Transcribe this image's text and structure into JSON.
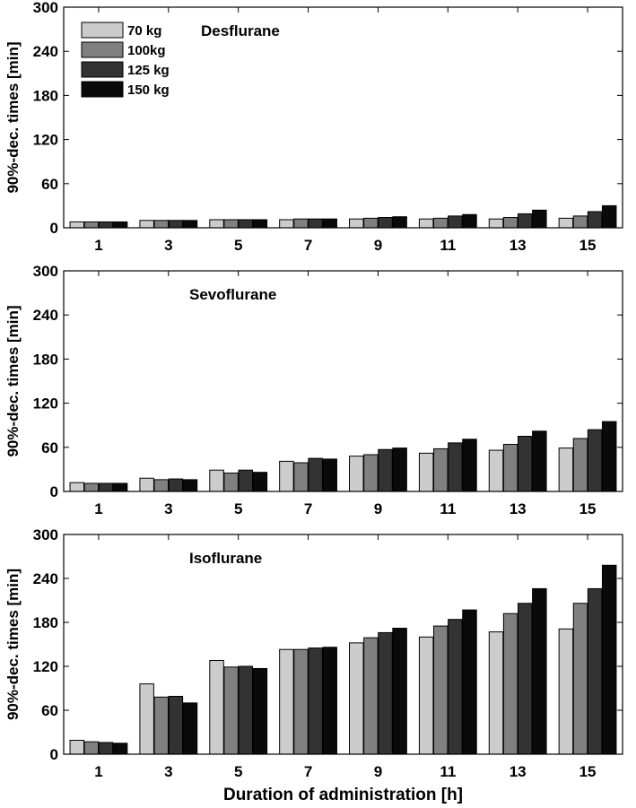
{
  "chart_data": [
    {
      "type": "bar",
      "title": "Desflurane",
      "xlabel": "",
      "ylabel": "90%-dec. times [min]",
      "categories": [
        "1",
        "3",
        "5",
        "7",
        "9",
        "11",
        "13",
        "15"
      ],
      "ylim": [
        0,
        300
      ],
      "yticks": [
        "0",
        "60",
        "120",
        "180",
        "240",
        "300"
      ],
      "legend_position": "top-left",
      "series": [
        {
          "name": "70 kg",
          "color": "#cccccc",
          "values": [
            8,
            10,
            11,
            11,
            12,
            12,
            12,
            13
          ]
        },
        {
          "name": "100kg",
          "color": "#808080",
          "values": [
            8,
            10,
            11,
            12,
            13,
            13,
            14,
            16
          ]
        },
        {
          "name": "125 kg",
          "color": "#333333",
          "values": [
            8,
            10,
            11,
            12,
            14,
            16,
            19,
            22
          ]
        },
        {
          "name": "150 kg",
          "color": "#0a0a0a",
          "values": [
            8,
            10,
            11,
            12,
            15,
            18,
            24,
            30
          ]
        }
      ]
    },
    {
      "type": "bar",
      "title": "Sevoflurane",
      "xlabel": "",
      "ylabel": "90%-dec. times [min]",
      "categories": [
        "1",
        "3",
        "5",
        "7",
        "9",
        "11",
        "13",
        "15"
      ],
      "ylim": [
        0,
        300
      ],
      "yticks": [
        "0",
        "60",
        "120",
        "180",
        "240",
        "300"
      ],
      "series": [
        {
          "name": "70 kg",
          "color": "#cccccc",
          "values": [
            12,
            18,
            29,
            41,
            48,
            52,
            56,
            59
          ]
        },
        {
          "name": "100kg",
          "color": "#808080",
          "values": [
            11,
            16,
            25,
            39,
            50,
            58,
            64,
            72
          ]
        },
        {
          "name": "125 kg",
          "color": "#333333",
          "values": [
            11,
            17,
            29,
            45,
            57,
            66,
            75,
            84
          ]
        },
        {
          "name": "150 kg",
          "color": "#0a0a0a",
          "values": [
            11,
            16,
            26,
            44,
            59,
            71,
            82,
            95
          ]
        }
      ]
    },
    {
      "type": "bar",
      "title": "Isoflurane",
      "xlabel": "Duration of administration [h]",
      "ylabel": "90%-dec. times [min]",
      "categories": [
        "1",
        "3",
        "5",
        "7",
        "9",
        "11",
        "13",
        "15"
      ],
      "ylim": [
        0,
        300
      ],
      "yticks": [
        "0",
        "60",
        "120",
        "180",
        "240",
        "300"
      ],
      "series": [
        {
          "name": "70 kg",
          "color": "#cccccc",
          "values": [
            19,
            96,
            128,
            143,
            152,
            160,
            167,
            171
          ]
        },
        {
          "name": "100kg",
          "color": "#808080",
          "values": [
            17,
            78,
            119,
            143,
            159,
            175,
            192,
            206
          ]
        },
        {
          "name": "125 kg",
          "color": "#333333",
          "values": [
            16,
            79,
            120,
            145,
            166,
            184,
            206,
            226
          ]
        },
        {
          "name": "150 kg",
          "color": "#0a0a0a",
          "values": [
            15,
            70,
            117,
            146,
            172,
            197,
            226,
            258
          ]
        }
      ]
    }
  ]
}
